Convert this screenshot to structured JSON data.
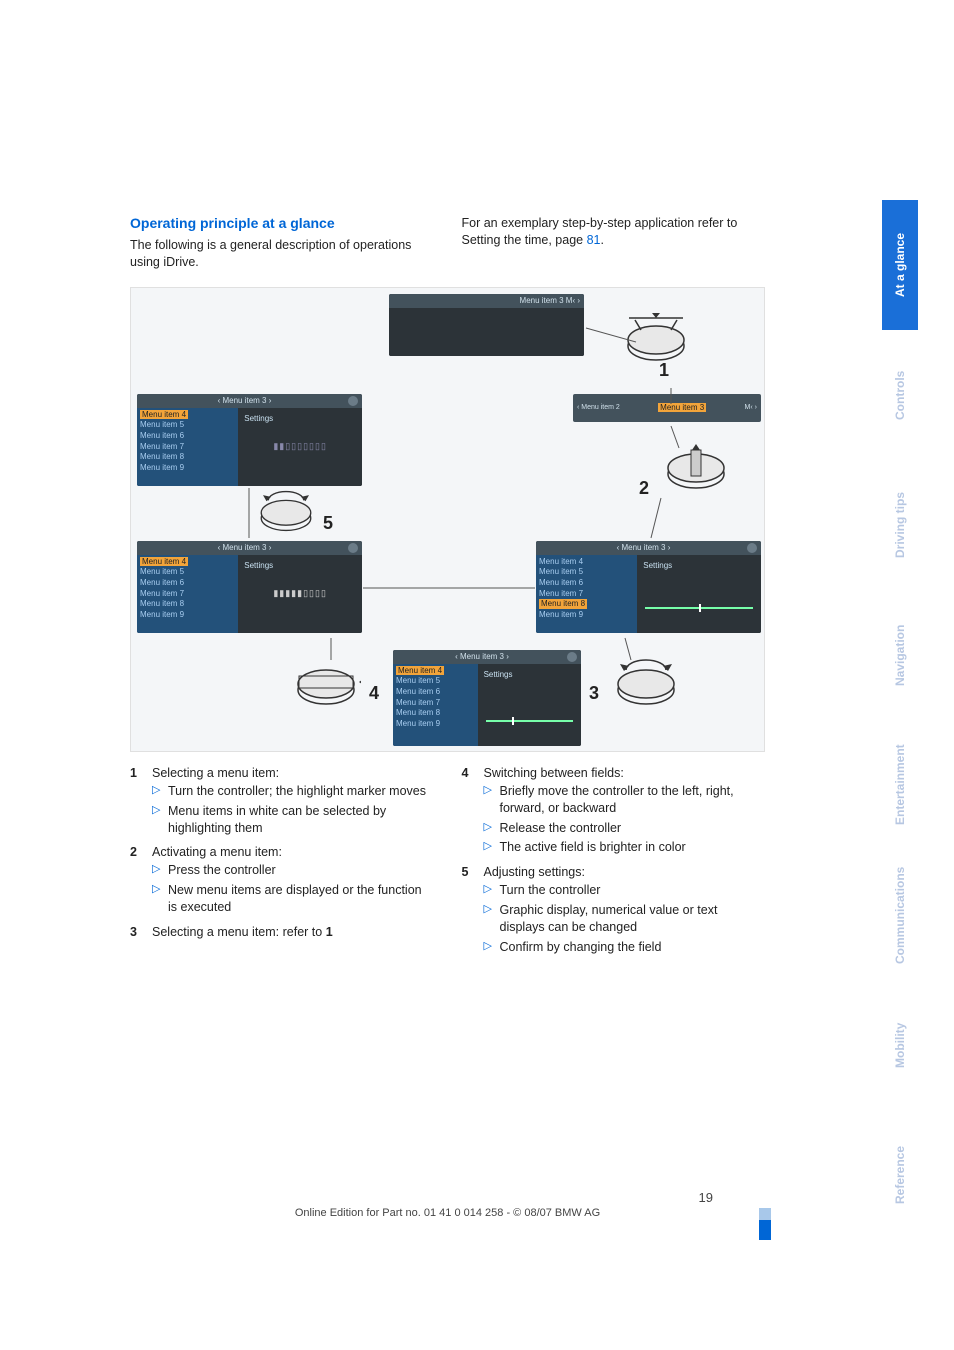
{
  "header": {
    "section_title": "Operating principle at a glance",
    "para_left": "The following is a general description of operations using iDrive.",
    "para_right_a": "For an exemplary step-by-step application refer to Setting the time, page ",
    "para_right_link": "81",
    "para_right_b": "."
  },
  "diagram": {
    "menu_header_ab": "‹ Menu item 3 ›",
    "menu_header_top": "Menu item 3  M‹ ›",
    "menu_header_top2a": "‹ Menu item 2",
    "menu_header_top2b": "Menu item 3",
    "menu_header_top2c": "M‹ ›",
    "settings": "Settings",
    "items": [
      "Menu item 4",
      "Menu item 5",
      "Menu item 6",
      "Menu item 7",
      "Menu item 8",
      "Menu item 9"
    ],
    "labels": {
      "1": "1",
      "2": "2",
      "3": "3",
      "4": "4",
      "5": "5"
    }
  },
  "lists": {
    "left": [
      {
        "n": "1",
        "title": "Selecting a menu item:",
        "sub": [
          "Turn the controller; the highlight marker moves",
          "Menu items in white can be selected by highlighting them"
        ]
      },
      {
        "n": "2",
        "title": "Activating a menu item:",
        "sub": [
          "Press the controller",
          "New menu items are displayed or the function is executed"
        ]
      },
      {
        "n": "3",
        "title_html": "Selecting a menu item: refer to <b>1</b>",
        "sub": []
      }
    ],
    "right": [
      {
        "n": "4",
        "title": "Switching between fields:",
        "sub": [
          "Briefly move the controller to the left, right, forward, or backward",
          "Release the controller",
          "The active field is brighter in color"
        ]
      },
      {
        "n": "5",
        "title": "Adjusting settings:",
        "sub": [
          "Turn the controller",
          "Graphic display, numerical value or text displays can be changed",
          "Confirm by changing the field"
        ]
      }
    ]
  },
  "footer": {
    "page": "19",
    "line": "Online Edition for Part no. 01 41 0 014 258 - © 08/07 BMW AG"
  },
  "tabs": [
    "At a glance",
    "Controls",
    "Driving tips",
    "Navigation",
    "Entertainment",
    "Communications",
    "Mobility",
    "Reference"
  ]
}
